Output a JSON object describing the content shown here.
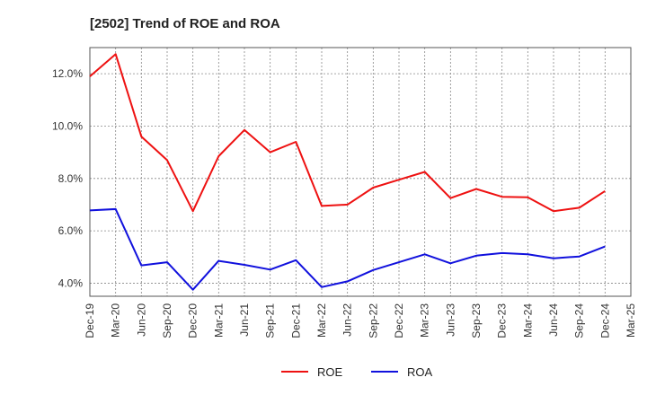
{
  "chart_data": {
    "type": "line",
    "title": "[2502]  Trend of ROE and ROA",
    "xlabel": "",
    "ylabel": "",
    "x": [
      "Dec-19",
      "Mar-20",
      "Jun-20",
      "Sep-20",
      "Dec-20",
      "Mar-21",
      "Jun-21",
      "Sep-21",
      "Dec-21",
      "Mar-22",
      "Jun-22",
      "Sep-22",
      "Dec-22",
      "Mar-23",
      "Jun-23",
      "Sep-23",
      "Dec-23",
      "Mar-24",
      "Jun-24",
      "Sep-24",
      "Dec-24",
      "Mar-25"
    ],
    "ylim": [
      3.5,
      13.0
    ],
    "yticks": [
      4.0,
      6.0,
      8.0,
      10.0,
      12.0
    ],
    "ytick_labels": [
      "4.0%",
      "6.0%",
      "8.0%",
      "10.0%",
      "12.0%"
    ],
    "grid": true,
    "legend_position": "bottom-center",
    "series": [
      {
        "name": "ROE",
        "color": "#ee1111",
        "values": [
          11.9,
          12.75,
          9.6,
          8.7,
          6.75,
          8.85,
          9.85,
          9.0,
          9.4,
          6.95,
          7.0,
          7.65,
          7.95,
          8.25,
          7.25,
          7.6,
          7.3,
          7.28,
          6.75,
          6.88,
          7.52,
          null
        ]
      },
      {
        "name": "ROA",
        "color": "#1111dd",
        "values": [
          6.78,
          6.83,
          4.68,
          4.8,
          3.75,
          4.85,
          4.7,
          4.52,
          4.88,
          3.85,
          4.07,
          4.5,
          4.8,
          5.1,
          4.76,
          5.05,
          5.15,
          5.1,
          4.95,
          5.02,
          5.4,
          null
        ]
      }
    ]
  }
}
